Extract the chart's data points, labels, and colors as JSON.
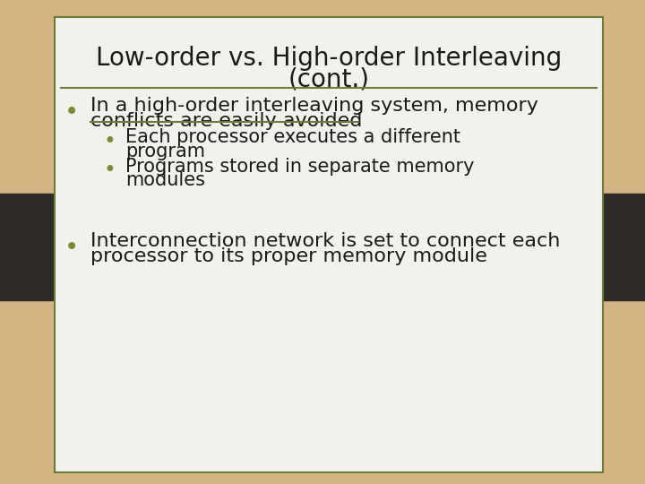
{
  "title_line1": "Low-order vs. High-order Interleaving",
  "title_line2": "(cont.)",
  "background_color": "#d4b483",
  "slide_bg": "#f2f1ec",
  "border_color": "#6b7c3a",
  "title_color": "#1a1a1a",
  "bullet_color": "#7a8c35",
  "text_color": "#1a1a1a",
  "bullet1_text_line1": "In a high-order interleaving system, memory",
  "bullet1_text_line2": "conflicts are easily avoided",
  "sub_bullet1_line1": "Each processor executes a different",
  "sub_bullet1_line2": "program",
  "sub_bullet2_line1": "Programs stored in separate memory",
  "sub_bullet2_line2": "modules",
  "bullet2_line1": "Interconnection network is set to connect each",
  "bullet2_line2": "processor to its proper memory module",
  "dark_tab_color": "#2e2a26",
  "title_fontsize": 20,
  "bullet_fontsize": 16,
  "sub_bullet_fontsize": 15
}
